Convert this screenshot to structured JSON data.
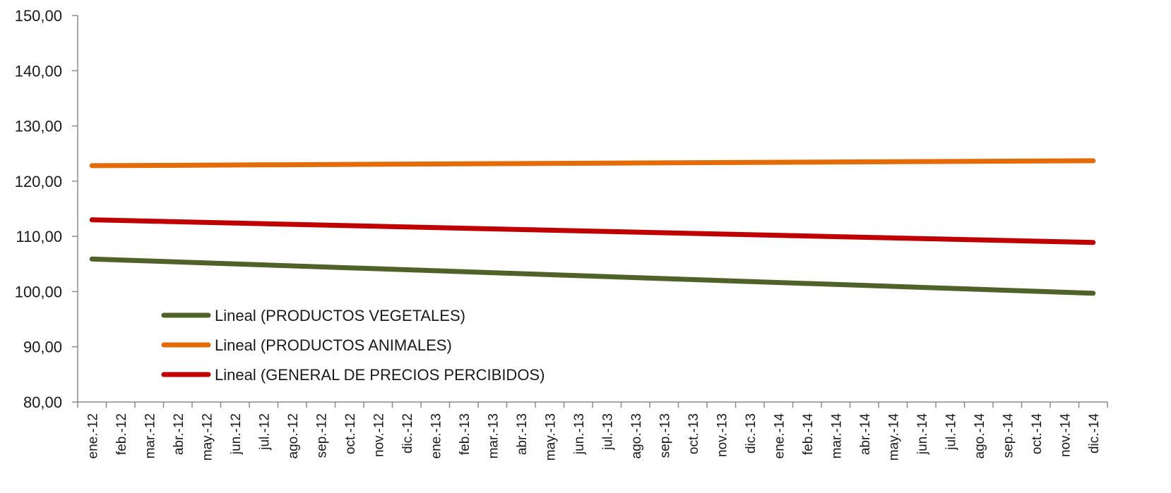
{
  "chart_data": {
    "type": "line",
    "title": "",
    "xlabel": "",
    "ylabel": "",
    "ylim": [
      80,
      150
    ],
    "yticks": [
      "80,00",
      "90,00",
      "100,00",
      "110,00",
      "120,00",
      "130,00",
      "140,00",
      "150,00"
    ],
    "ytick_values": [
      80,
      90,
      100,
      110,
      120,
      130,
      140,
      150
    ],
    "grid": false,
    "legend_position": "bottom-left",
    "categories": [
      "ene.-12",
      "feb.-12",
      "mar.-12",
      "abr.-12",
      "may.-12",
      "jun.-12",
      "jul.-12",
      "ago.-12",
      "sep.-12",
      "oct.-12",
      "nov.-12",
      "dic.-12",
      "ene.-13",
      "feb.-13",
      "mar.-13",
      "abr.-13",
      "may.-13",
      "jun.-13",
      "jul.-13",
      "ago.-13",
      "sep.-13",
      "oct.-13",
      "nov.-13",
      "dic.-13",
      "ene.-14",
      "feb.-14",
      "mar.-14",
      "abr.-14",
      "may.-14",
      "jun.-14",
      "jul.-14",
      "ago.-14",
      "sep.-14",
      "oct.-14",
      "nov.-14",
      "dic.-14"
    ],
    "series": [
      {
        "name": "Lineal (PRODUCTOS VEGETALES)",
        "color": "#4f6228",
        "start": 105.9,
        "end": 99.7
      },
      {
        "name": "Lineal (PRODUCTOS ANIMALES)",
        "color": "#e36c09",
        "start": 122.8,
        "end": 123.7
      },
      {
        "name": "Lineal (GENERAL DE PRECIOS PERCIBIDOS)",
        "color": "#c00000",
        "start": 113.0,
        "end": 108.9
      }
    ]
  }
}
